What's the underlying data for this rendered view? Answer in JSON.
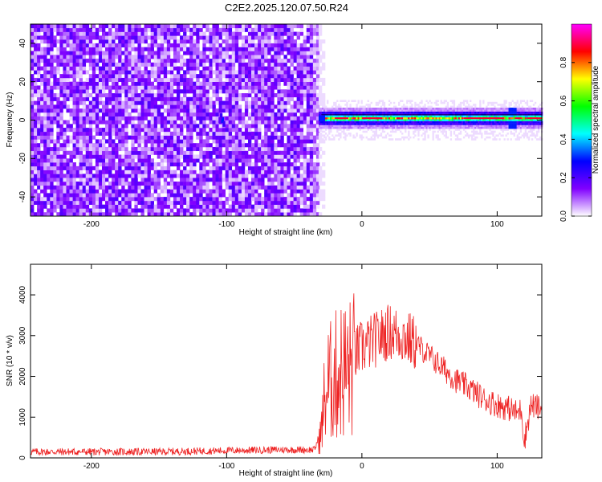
{
  "chart_data": [
    {
      "type": "heatmap",
      "title": "C2E2.2025.120.07.50.R24",
      "xlabel": "Height of straight line (km)",
      "ylabel": "Frequency (Hz)",
      "xlim": [
        -245,
        133
      ],
      "ylim": [
        -50,
        50
      ],
      "xticks": [
        -200,
        -100,
        0,
        100
      ],
      "yticks": [
        -40,
        -20,
        0,
        20,
        40
      ],
      "grid": false,
      "noise_region_x": [
        -245,
        -32
      ],
      "signal_region_x": [
        -32,
        133
      ],
      "signal_center_frequency": 1,
      "colorbar": {
        "label": "Normalized spectral amplitude",
        "range": [
          0,
          1
        ],
        "ticks": [
          0.0,
          0.2,
          0.4,
          0.6,
          0.8
        ],
        "colormap": [
          "#ffffff",
          "#8000ff",
          "#0000ff",
          "#00ffff",
          "#00ff00",
          "#ffff00",
          "#ff0000",
          "#ff00ff"
        ]
      }
    },
    {
      "type": "line",
      "xlabel": "Height of straight line (km)",
      "ylabel": "SNR (10 * v/v)",
      "xlim": [
        -245,
        133
      ],
      "ylim": [
        0,
        4750
      ],
      "xticks": [
        -200,
        -100,
        0,
        100
      ],
      "yticks": [
        0,
        1000,
        2000,
        3000,
        4000
      ],
      "grid": false,
      "color": "#ee2222",
      "series": [
        {
          "x": [
            -245,
            -200,
            -150,
            -100,
            -60,
            -35,
            -30,
            -28,
            -25,
            -20,
            -15,
            -10,
            0,
            10,
            20,
            30,
            40,
            50,
            60,
            70,
            80,
            90,
            100,
            110,
            115,
            118,
            120,
            125,
            133
          ],
          "values": [
            150,
            150,
            150,
            180,
            200,
            200,
            700,
            1500,
            2000,
            2200,
            2400,
            2400,
            2700,
            2900,
            3100,
            3000,
            2800,
            2500,
            2200,
            1900,
            1700,
            1450,
            1300,
            1200,
            1100,
            1200,
            400,
            1300,
            1200
          ]
        }
      ]
    }
  ]
}
